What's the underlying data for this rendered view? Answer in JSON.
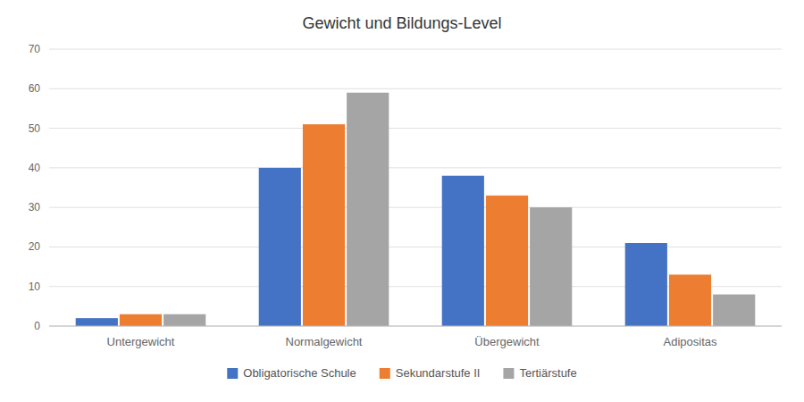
{
  "chart_data": {
    "type": "bar",
    "title": "Gewicht und Bildungs-Level",
    "categories": [
      "Untergewicht",
      "Normalgewicht",
      "Übergewicht",
      "Adipositas"
    ],
    "series": [
      {
        "name": "Obligatorische Schule",
        "color": "#4472C4",
        "values": [
          2,
          40,
          38,
          21
        ]
      },
      {
        "name": "Sekundarstufe II",
        "color": "#ED7D31",
        "values": [
          3,
          51,
          33,
          13
        ]
      },
      {
        "name": "Tertiärstufe",
        "color": "#A5A5A5",
        "values": [
          3,
          59,
          30,
          8
        ]
      }
    ],
    "ylim": [
      0,
      70
    ],
    "yticks": [
      0,
      10,
      20,
      30,
      40,
      50,
      60,
      70
    ],
    "grid": true,
    "legend": "bottom"
  }
}
